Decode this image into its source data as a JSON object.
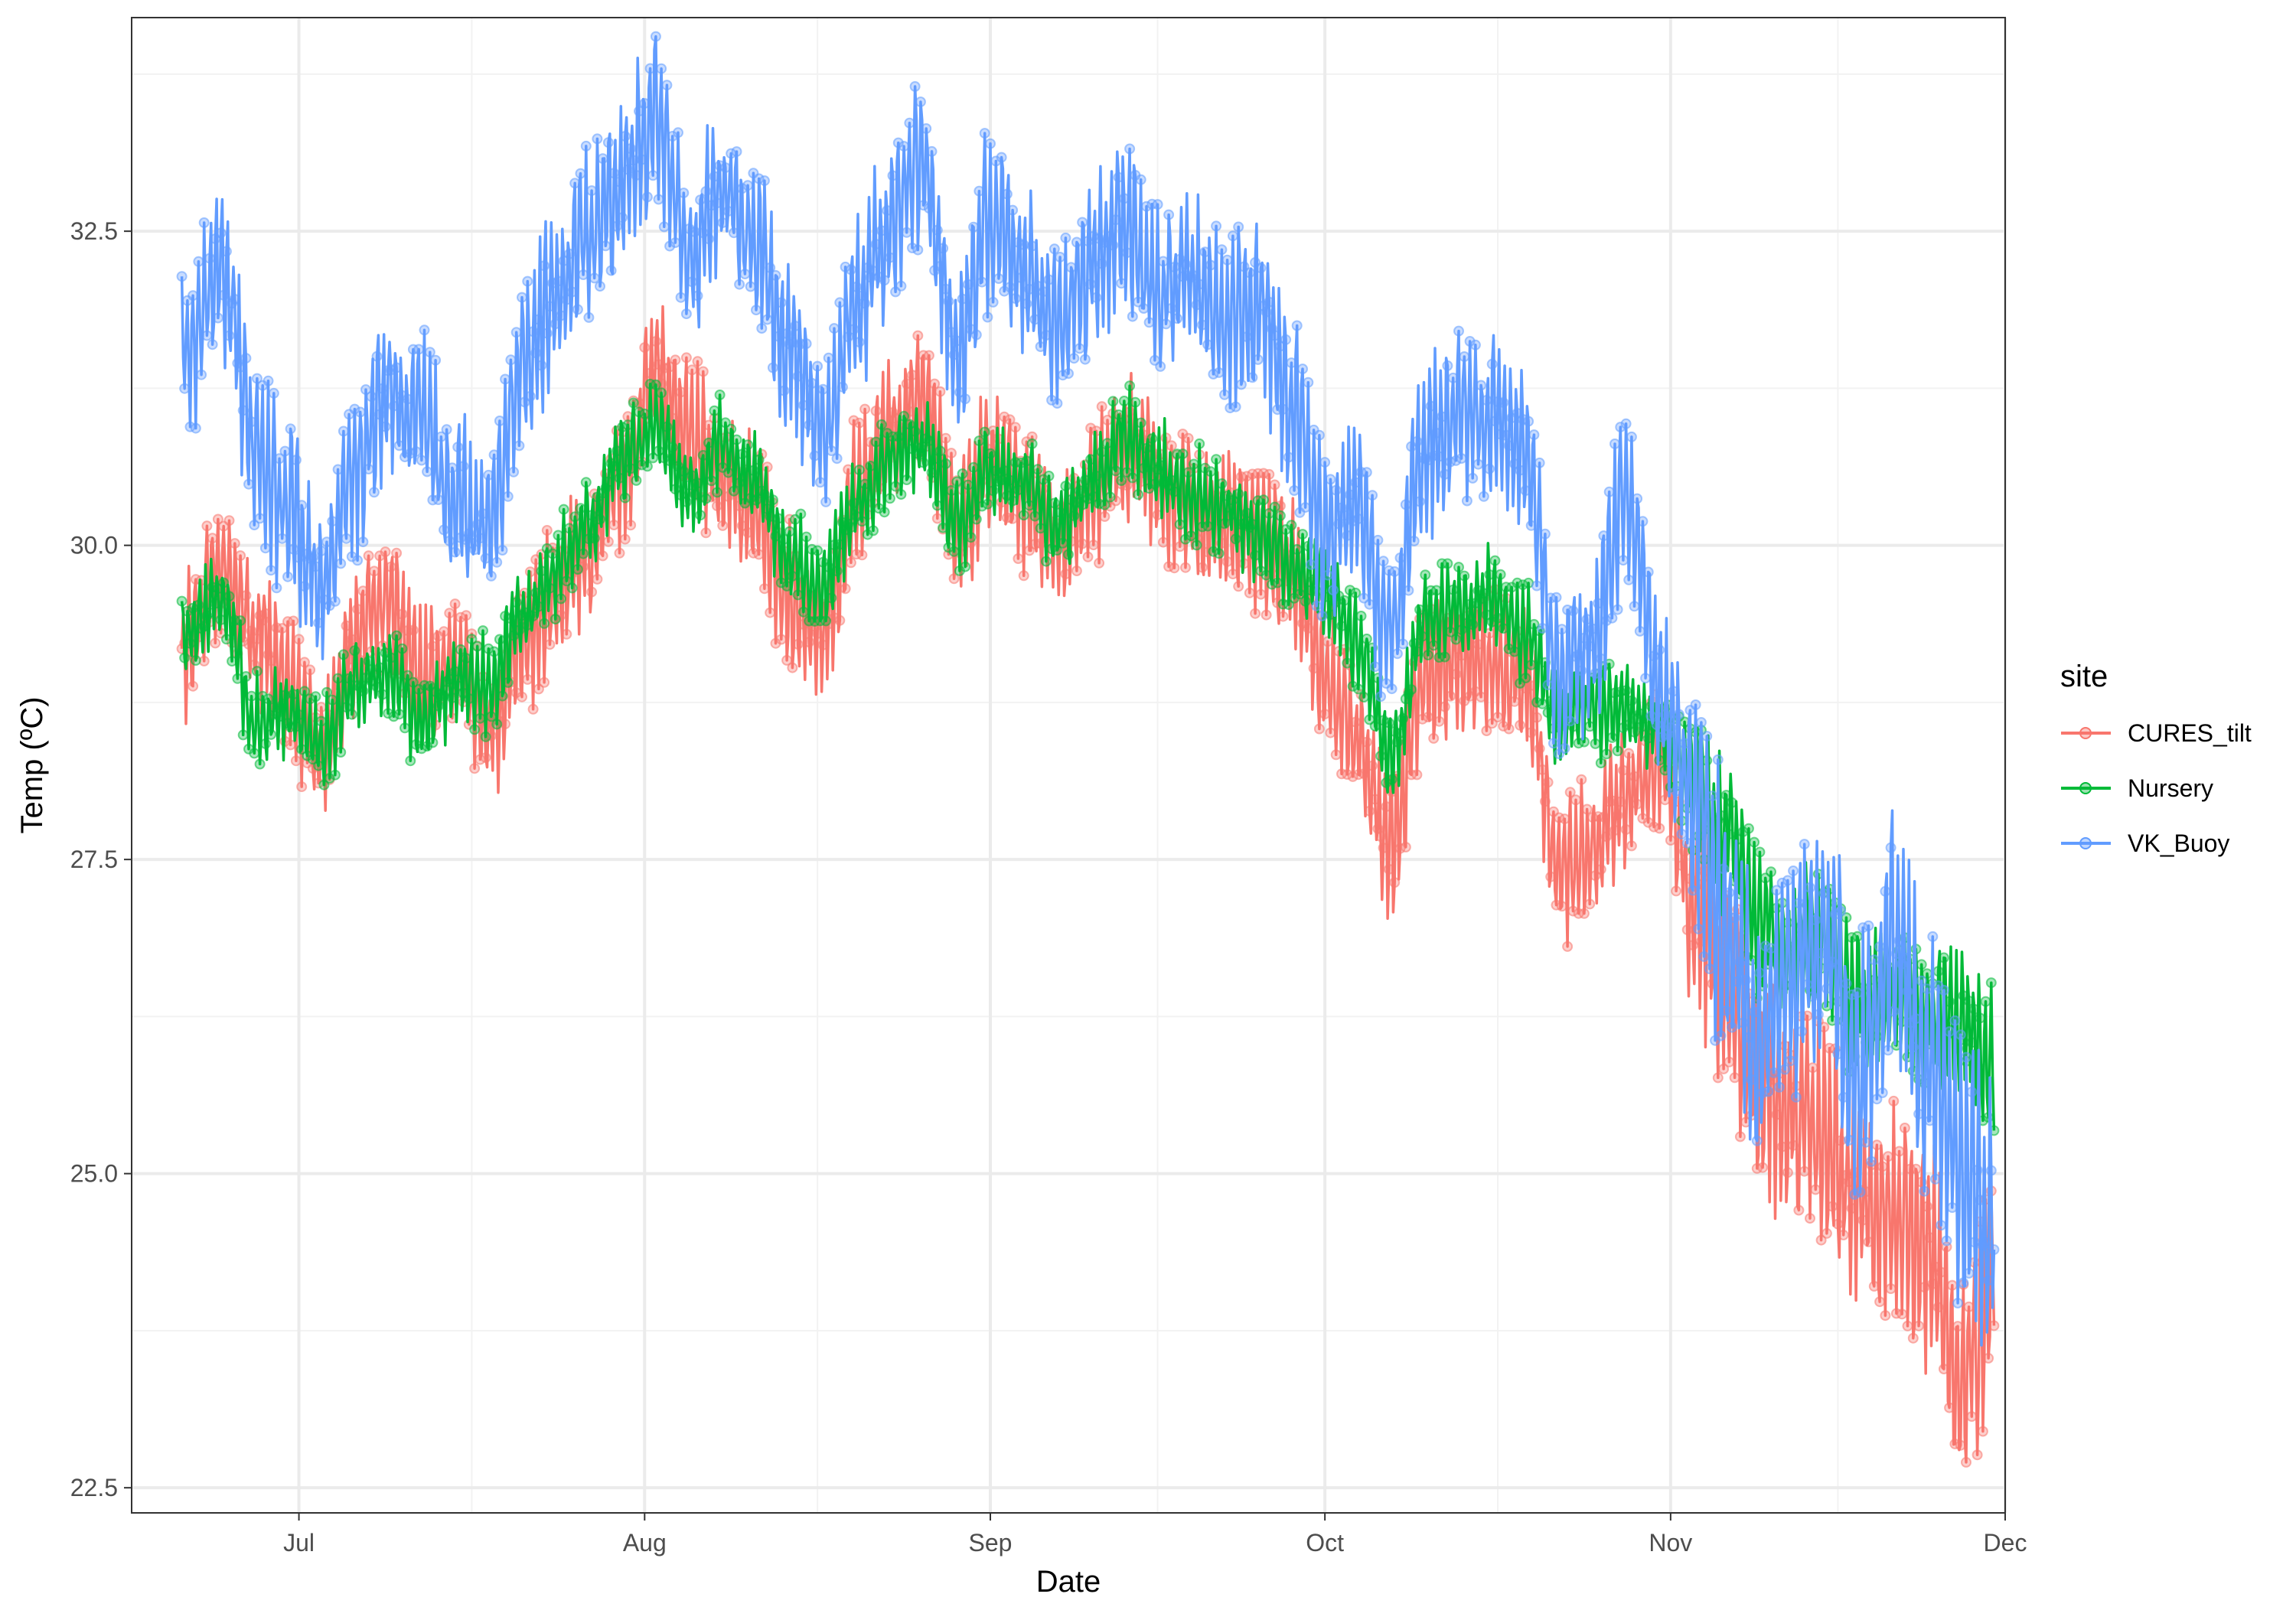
{
  "chart_data": {
    "type": "line",
    "title": "",
    "xlabel": "Date",
    "ylabel": "Temp (ºC)",
    "x_range": [
      "2020-06-16",
      "2020-12-01"
    ],
    "x_ticks": [
      "2020-07-01",
      "2020-08-01",
      "2020-09-01",
      "2020-10-01",
      "2020-11-01",
      "2020-12-01"
    ],
    "x_tick_labels": [
      "Jul",
      "Aug",
      "Sep",
      "Oct",
      "Nov",
      "Dec"
    ],
    "ylim": [
      22.3,
      34.2
    ],
    "y_ticks": [
      22.5,
      25.0,
      27.5,
      30.0,
      32.5
    ],
    "y_tick_labels": [
      "22.5",
      "25.0",
      "27.5",
      "30.0",
      "32.5"
    ],
    "grid": true,
    "markers": "hollow circles with translucent fill",
    "legend": {
      "title": "site",
      "position": "right"
    },
    "x": [
      "2020-06-21",
      "2020-06-24",
      "2020-06-27",
      "2020-06-30",
      "2020-07-03",
      "2020-07-06",
      "2020-07-09",
      "2020-07-12",
      "2020-07-15",
      "2020-07-18",
      "2020-07-21",
      "2020-07-24",
      "2020-07-27",
      "2020-07-30",
      "2020-08-02",
      "2020-08-05",
      "2020-08-08",
      "2020-08-11",
      "2020-08-14",
      "2020-08-17",
      "2020-08-20",
      "2020-08-23",
      "2020-08-26",
      "2020-08-29",
      "2020-09-01",
      "2020-09-04",
      "2020-09-07",
      "2020-09-10",
      "2020-09-13",
      "2020-09-16",
      "2020-09-19",
      "2020-09-22",
      "2020-09-25",
      "2020-09-28",
      "2020-10-01",
      "2020-10-04",
      "2020-10-07",
      "2020-10-10",
      "2020-10-13",
      "2020-10-16",
      "2020-10-19",
      "2020-10-22",
      "2020-10-25",
      "2020-10-28",
      "2020-10-31",
      "2020-11-03",
      "2020-11-06",
      "2020-11-09",
      "2020-11-12",
      "2020-11-15",
      "2020-11-18",
      "2020-11-21",
      "2020-11-24",
      "2020-11-27",
      "2020-11-30"
    ],
    "series": [
      {
        "name": "CURES_tilt",
        "color": "#F8766D",
        "values": [
          29.2,
          29.9,
          29.3,
          28.9,
          28.4,
          29.2,
          29.6,
          28.9,
          29.1,
          28.5,
          29.2,
          29.6,
          30.0,
          30.6,
          31.4,
          30.9,
          30.5,
          30.3,
          29.6,
          29.3,
          30.4,
          30.9,
          31.2,
          30.1,
          30.7,
          30.4,
          30.0,
          30.4,
          30.8,
          30.5,
          30.3,
          30.2,
          30.1,
          29.8,
          29.0,
          28.4,
          27.6,
          29.0,
          29.1,
          29.0,
          28.9,
          27.4,
          27.6,
          28.0,
          28.3,
          27.2,
          26.5,
          25.6,
          25.4,
          25.3,
          24.8,
          24.6,
          24.4,
          23.4,
          24.0
        ]
      },
      {
        "name": "Nursery",
        "color": "#00BA38",
        "values": [
          29.3,
          29.6,
          28.6,
          28.7,
          28.4,
          28.9,
          29.0,
          28.6,
          28.9,
          28.9,
          29.4,
          29.8,
          30.2,
          30.7,
          30.9,
          30.4,
          30.8,
          30.5,
          29.9,
          29.7,
          30.3,
          30.7,
          30.8,
          30.2,
          30.6,
          30.5,
          30.1,
          30.5,
          30.9,
          30.6,
          30.4,
          30.3,
          30.1,
          29.8,
          29.7,
          29.2,
          28.3,
          29.4,
          29.5,
          29.6,
          29.3,
          28.6,
          28.7,
          28.7,
          28.6,
          28.1,
          27.7,
          27.0,
          26.8,
          26.9,
          26.3,
          26.4,
          26.3,
          26.2,
          25.9
        ]
      },
      {
        "name": "VK_Buoy",
        "color": "#619CFF",
        "values": [
          31.6,
          32.2,
          30.8,
          30.3,
          29.6,
          30.6,
          31.2,
          31.0,
          30.3,
          30.2,
          31.4,
          32.0,
          32.5,
          32.9,
          33.4,
          32.3,
          32.8,
          32.4,
          31.5,
          30.9,
          32.0,
          32.5,
          33.1,
          31.5,
          32.6,
          32.2,
          31.7,
          32.2,
          32.6,
          32.0,
          32.1,
          31.8,
          31.9,
          31.1,
          30.1,
          30.2,
          29.3,
          30.8,
          31.0,
          31.0,
          30.7,
          29.0,
          29.2,
          30.4,
          28.8,
          28.0,
          27.0,
          26.0,
          26.6,
          26.9,
          25.8,
          26.8,
          25.8,
          25.1,
          24.6
        ]
      }
    ]
  }
}
